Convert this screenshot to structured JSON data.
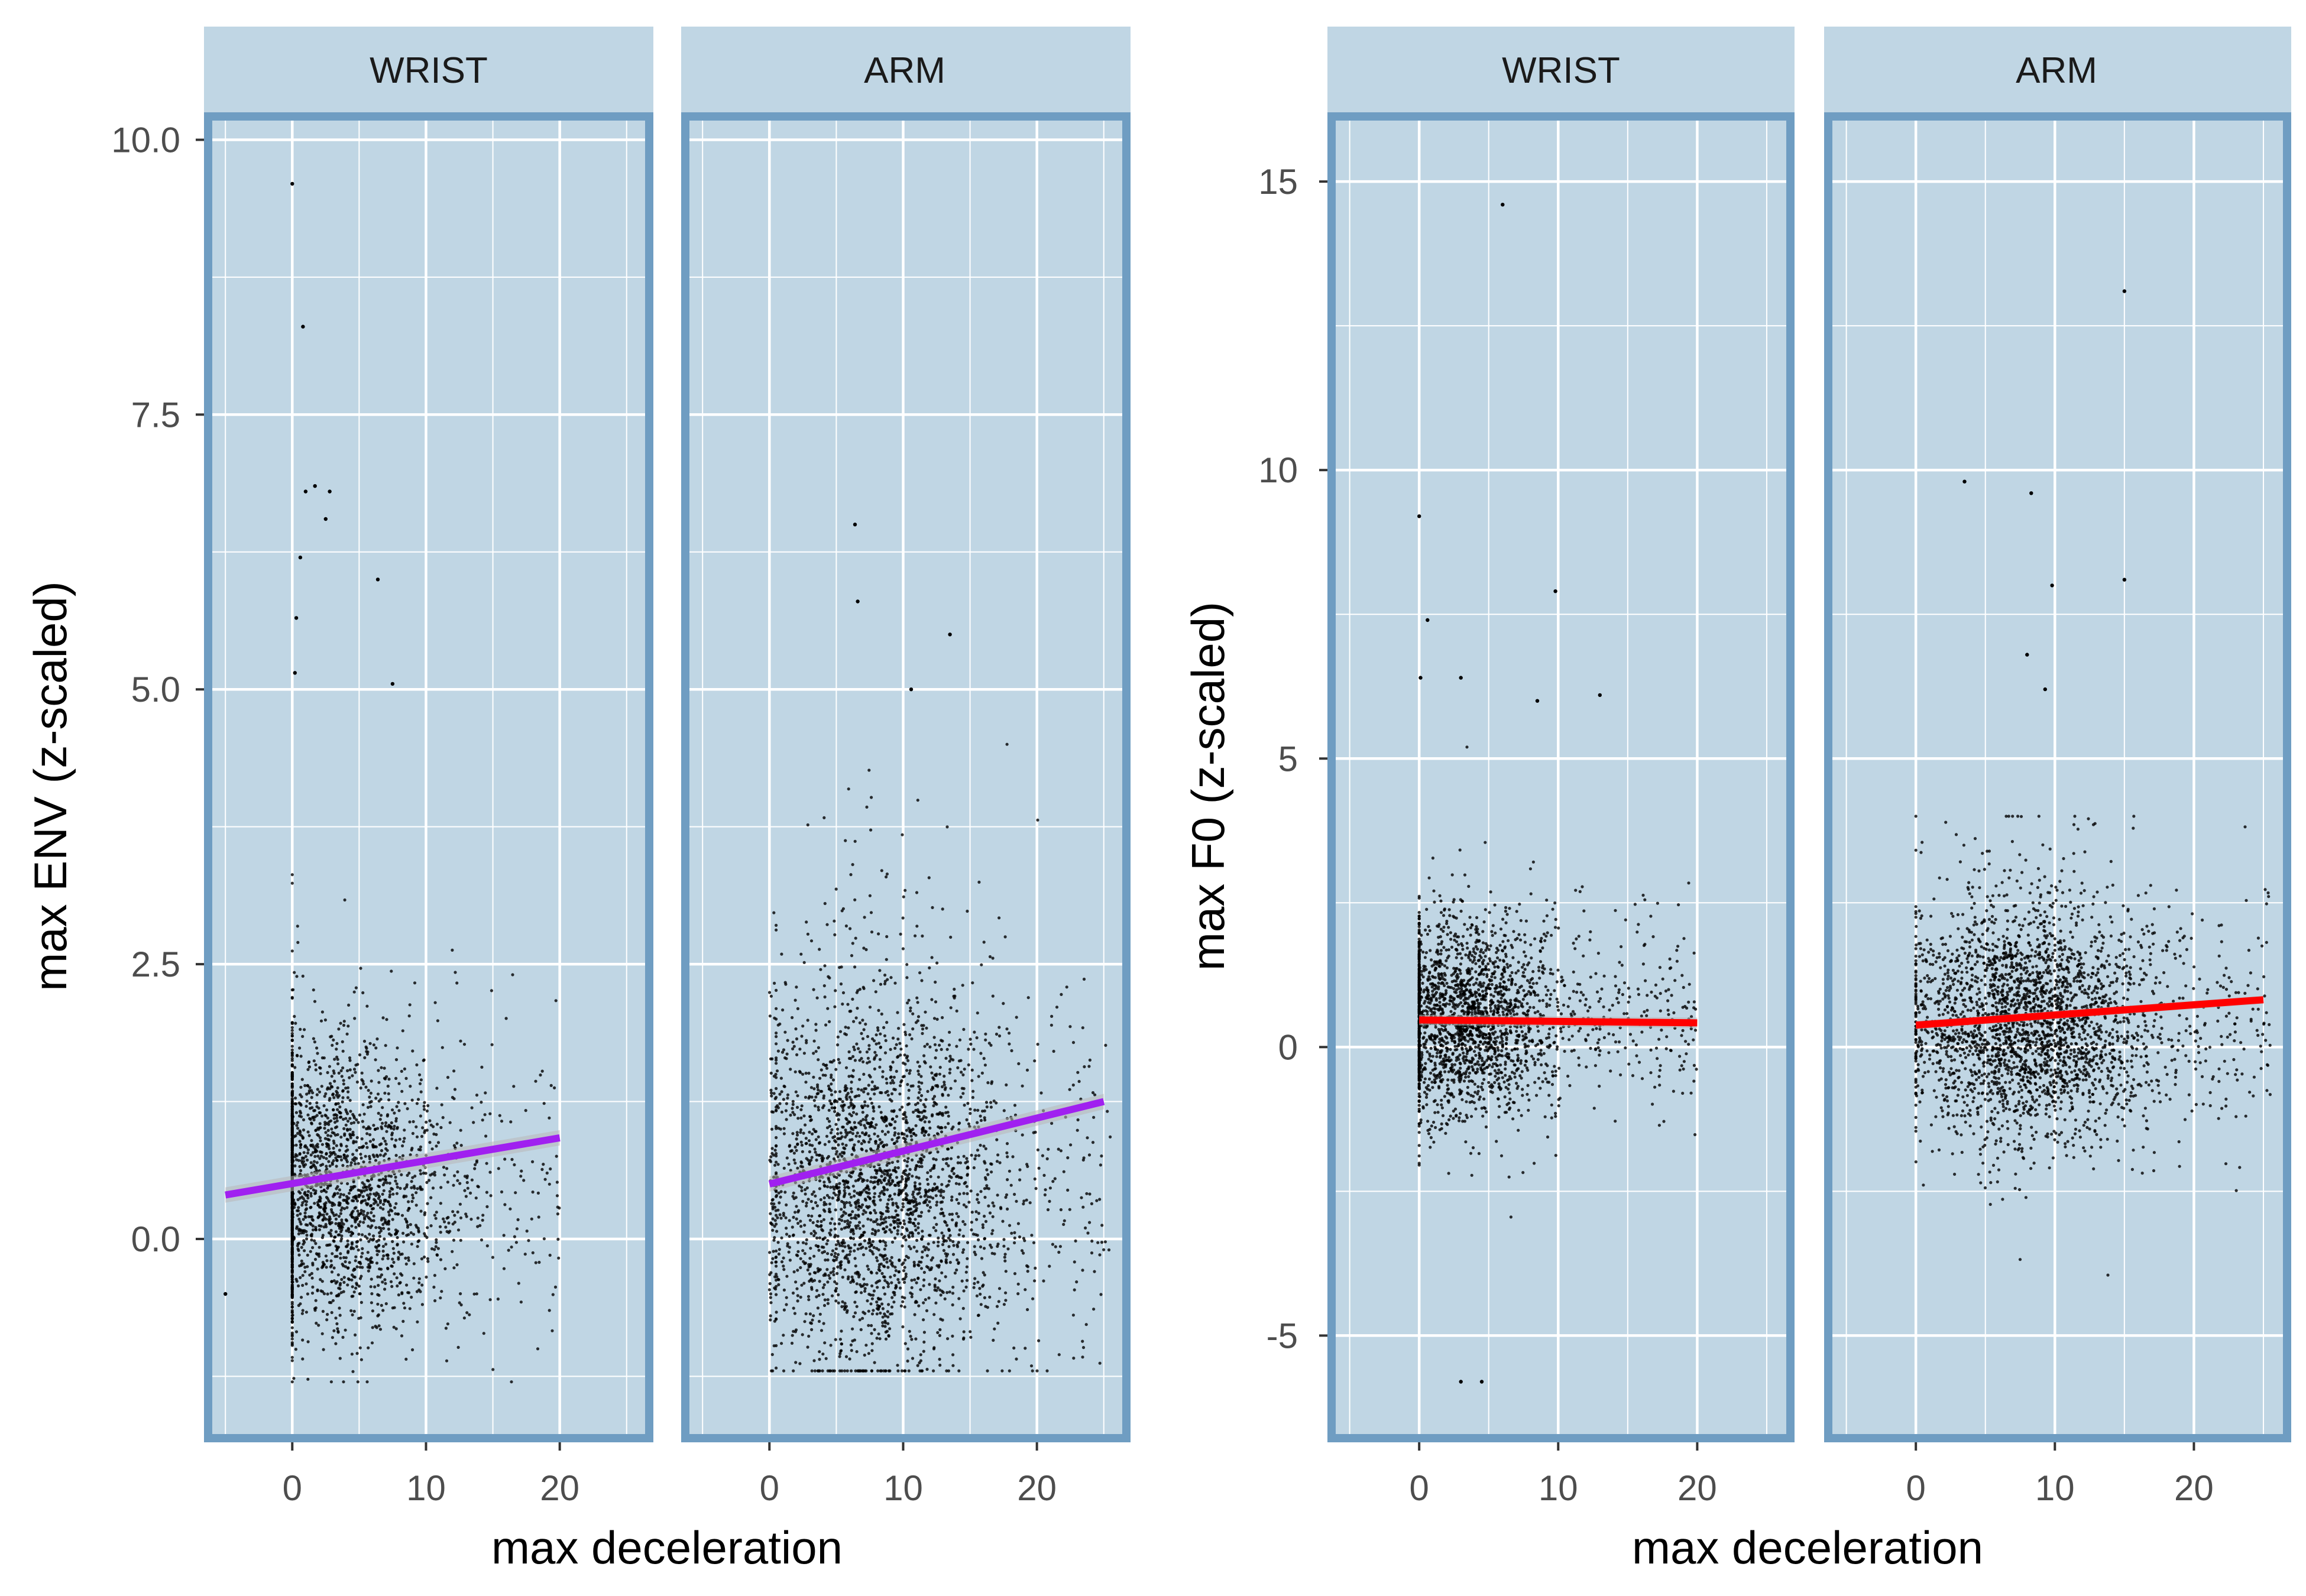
{
  "colors": {
    "panel_background": "#c0d6e4",
    "panel_border": "#6f9dc2",
    "strip_background": "#c0d6e4",
    "grid": "#ffffff",
    "points": "#000000",
    "env_trend": "#a020f0",
    "f0_trend": "#ff0000",
    "confidence_band": "#b8b8b8"
  },
  "chart_data": [
    {
      "type": "scatter",
      "title": "",
      "xlabel": "max deceleration",
      "ylabel": "max ENV (z-scaled)",
      "xlim": [
        -6.6,
        27
      ],
      "ylim": [
        -1.85,
        10.25
      ],
      "x_ticks": [
        0,
        10,
        20
      ],
      "x_tick_labels": [
        "0",
        "10",
        "20"
      ],
      "y_ticks": [
        0,
        2.5,
        5,
        7.5,
        10
      ],
      "y_tick_labels": [
        "0.0",
        "2.5",
        "5.0",
        "7.5",
        "10.0"
      ],
      "grid": true,
      "legend": "none",
      "trend_color": "#a020f0",
      "facets": [
        {
          "strip_label": "WRIST",
          "point_cloud": {
            "n": 2300,
            "x_min": -5,
            "x_max": 20,
            "x_mode": 3,
            "y_center": 0.45,
            "y_spread": 0.65,
            "y_min": -1.3,
            "y_max": 5.0
          },
          "outliers": [
            [
              0,
              9.6
            ],
            [
              0.8,
              8.3
            ],
            [
              1,
              6.8
            ],
            [
              1.7,
              6.85
            ],
            [
              2.5,
              6.55
            ],
            [
              2.8,
              6.8
            ],
            [
              0.6,
              6.2
            ],
            [
              6.4,
              6.0
            ],
            [
              0.3,
              5.65
            ],
            [
              0.2,
              5.15
            ],
            [
              7.5,
              5.05
            ],
            [
              -5,
              -0.5
            ]
          ],
          "trend": {
            "x": [
              -5,
              20
            ],
            "y": [
              0.4,
              0.92
            ],
            "ci": 0.07
          }
        },
        {
          "strip_label": "ARM",
          "point_cloud": {
            "n": 2800,
            "x_min": -1,
            "x_max": 25.5,
            "x_mode": 8,
            "y_center": 0.5,
            "y_spread": 0.85,
            "y_min": -1.2,
            "y_max": 4.5
          },
          "outliers": [
            [
              6.4,
              6.5
            ],
            [
              6.6,
              5.8
            ],
            [
              13.5,
              5.5
            ],
            [
              10.6,
              5.0
            ]
          ],
          "trend": {
            "x": [
              0,
              25
            ],
            "y": [
              0.5,
              1.25
            ],
            "ci": 0.07
          }
        }
      ]
    },
    {
      "type": "scatter",
      "title": "",
      "xlabel": "max deceleration",
      "ylabel": "max F0 (z-scaled)",
      "xlim": [
        -6.6,
        27
      ],
      "ylim": [
        -6.85,
        16.2
      ],
      "x_ticks": [
        0,
        10,
        20
      ],
      "x_tick_labels": [
        "0",
        "10",
        "20"
      ],
      "y_ticks": [
        -5,
        0,
        5,
        10,
        15
      ],
      "y_tick_labels": [
        "-5",
        "0",
        "5",
        "10",
        "15"
      ],
      "grid": true,
      "legend": "none",
      "trend_color": "#ff0000",
      "facets": [
        {
          "strip_label": "WRIST",
          "point_cloud": {
            "n": 2300,
            "x_min": 0,
            "x_max": 20,
            "x_mode": 3,
            "y_center": 0.45,
            "y_spread": 0.85,
            "y_min": -5.9,
            "y_max": 5.2
          },
          "outliers": [
            [
              6,
              14.6
            ],
            [
              0,
              9.2
            ],
            [
              0.6,
              7.4
            ],
            [
              9.8,
              7.9
            ],
            [
              13,
              6.1
            ],
            [
              8.5,
              6.0
            ],
            [
              3,
              6.4
            ],
            [
              0.1,
              6.4
            ],
            [
              3,
              -5.8
            ],
            [
              4.5,
              -5.8
            ]
          ],
          "trend": {
            "x": [
              0,
              20
            ],
            "y": [
              0.47,
              0.42
            ],
            "ci": 0.09
          }
        },
        {
          "strip_label": "ARM",
          "point_cloud": {
            "n": 2800,
            "x_min": 0,
            "x_max": 25.5,
            "x_mode": 8,
            "y_center": 0.4,
            "y_spread": 1.05,
            "y_min": -5.0,
            "y_max": 4.0
          },
          "outliers": [
            [
              15,
              13.1
            ],
            [
              3.5,
              9.8
            ],
            [
              8.3,
              9.6
            ],
            [
              15,
              8.1
            ],
            [
              9.8,
              8.0
            ],
            [
              8,
              6.8
            ],
            [
              9.3,
              6.2
            ]
          ],
          "trend": {
            "x": [
              0,
              25
            ],
            "y": [
              0.38,
              0.82
            ],
            "ci": 0.07
          }
        }
      ]
    }
  ]
}
